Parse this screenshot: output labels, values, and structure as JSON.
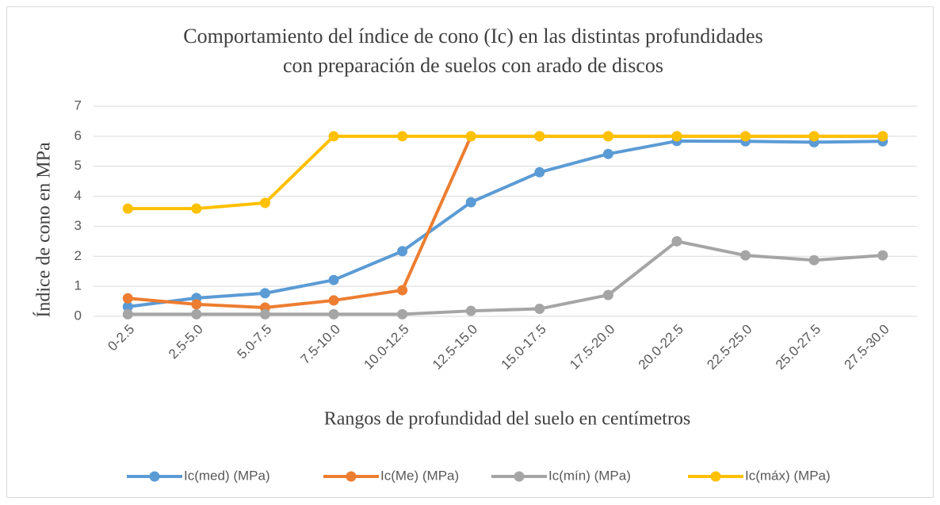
{
  "chart_data": {
    "type": "line",
    "title": [
      "Comportamiento del índice de cono (Ic) en las distintas profundidades",
      "con preparación de suelos con arado de discos"
    ],
    "x_label": "Rangos de profundidad del suelo en centímetros",
    "y_label": "Índice de cono en MPa",
    "categories": [
      "0-2.5",
      "2.5-5.0",
      "5.0-7.5",
      "7.5-10.0",
      "10.0-12.5",
      "12.5-15.0",
      "15.0-17.5",
      "17.5-20.0",
      "20.0-22.5",
      "22.5-25.0",
      "25.0-27.5",
      "27.5-30.0"
    ],
    "series": [
      {
        "name": "Ic(med) (MPa)",
        "color": "#5b9bd5",
        "values": [
          0.32,
          0.61,
          0.77,
          1.21,
          2.17,
          3.8,
          4.8,
          5.41,
          5.84,
          5.83,
          5.8,
          5.83
        ]
      },
      {
        "name": "Ic(Me) (MPa)",
        "color": "#ed7d31",
        "values": [
          0.6,
          0.4,
          0.29,
          0.53,
          0.87,
          6,
          6,
          6,
          6,
          6,
          6,
          6
        ]
      },
      {
        "name": "Ic(mín) (MPa)",
        "color": "#a5a5a5",
        "values": [
          0.07,
          0.07,
          0.07,
          0.07,
          0.07,
          0.18,
          0.25,
          0.71,
          2.5,
          2.03,
          1.87,
          2.03
        ]
      },
      {
        "name": "Ic(máx) (MPa)",
        "color": "#ffc000",
        "values": [
          3.59,
          3.59,
          3.78,
          6,
          6,
          6,
          6,
          6,
          6,
          6,
          6,
          6
        ]
      }
    ],
    "ylim": [
      0,
      7
    ],
    "yticks": [
      0,
      1,
      2,
      3,
      4,
      5,
      6,
      7
    ],
    "grid": true,
    "legend": "bottom"
  }
}
